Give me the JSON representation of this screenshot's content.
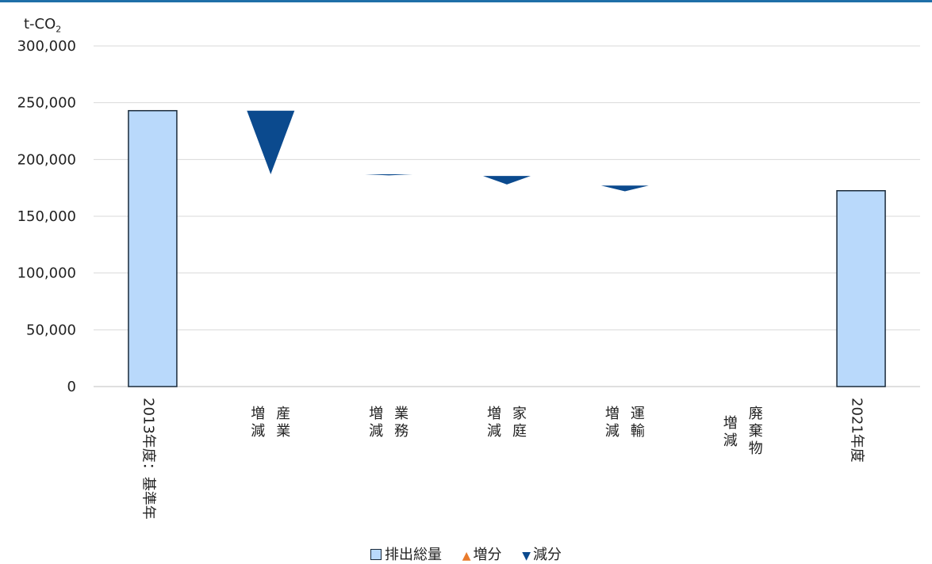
{
  "chart_data": {
    "type": "bar",
    "unit_label": "t-CO",
    "unit_sub": "2",
    "ylim": [
      0,
      300000
    ],
    "yticks": [
      "0",
      "50,000",
      "100,000",
      "150,000",
      "200,000",
      "250,000",
      "300,000"
    ],
    "ytick_values": [
      0,
      50000,
      100000,
      150000,
      200000,
      250000,
      300000
    ],
    "categories": [
      "2013年度：基準年",
      "産業増減",
      "業務増減",
      "家庭増減",
      "運輸増減",
      "廃棄物増減",
      "2021年度"
    ],
    "category_layout": [
      {
        "kind": "horizontal",
        "text": "2013年度：基準年"
      },
      {
        "kind": "two-col",
        "col1": "増減",
        "col2": "産業"
      },
      {
        "kind": "two-col",
        "col1": "増減",
        "col2": "業務"
      },
      {
        "kind": "two-col",
        "col1": "増減",
        "col2": "家庭"
      },
      {
        "kind": "two-col",
        "col1": "増減",
        "col2": "運輸"
      },
      {
        "kind": "two-col",
        "col1": "増減",
        "col2": "廃棄物"
      },
      {
        "kind": "horizontal",
        "text": "2021年度"
      }
    ],
    "series": [
      {
        "name": "排出総量",
        "values": [
          243000,
          null,
          null,
          null,
          null,
          null,
          172500
        ]
      },
      {
        "name": "増分",
        "values": [
          null,
          null,
          null,
          null,
          null,
          null,
          null
        ]
      },
      {
        "name": "減分",
        "start": [
          null,
          243000,
          187000,
          185500,
          177000,
          null,
          null
        ],
        "end": [
          null,
          187000,
          186000,
          178000,
          172000,
          null,
          null
        ]
      }
    ],
    "legend": {
      "position": "bottom"
    },
    "grid": true,
    "colors": {
      "total": "#b9d9fb",
      "total_border": "#1a2a3a",
      "increase": "#e97b2c",
      "decrease": "#0b4a8e",
      "grid": "#d9d9d9"
    }
  },
  "legend": {
    "total": "排出総量",
    "increase": "増分",
    "decrease": "減分",
    "increase_symbol": "▲",
    "decrease_symbol": "▼"
  }
}
